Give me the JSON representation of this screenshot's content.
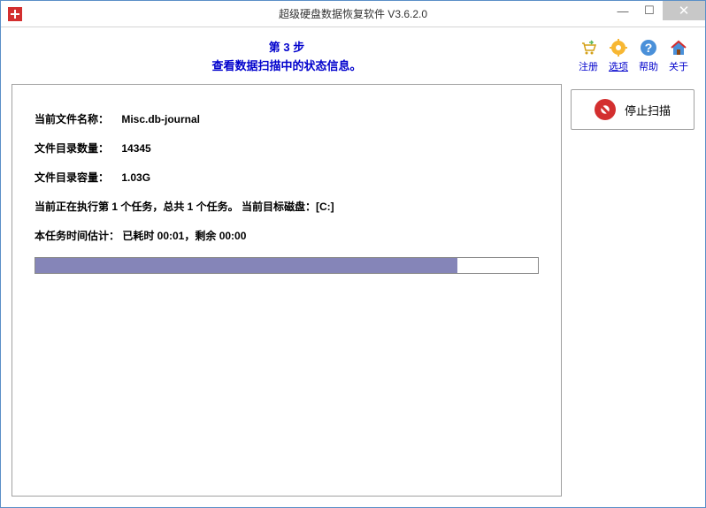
{
  "window": {
    "title": "超级硬盘数据恢复软件  V3.6.2.0"
  },
  "step": {
    "number": "第 3 步",
    "description": "查看数据扫描中的状态信息。"
  },
  "info": {
    "filename_label": "当前文件名称：",
    "filename_value": "Misc.db-journal",
    "count_label": "文件目录数量：",
    "count_value": "14345",
    "size_label": "文件目录容量：",
    "size_value": "1.03G",
    "task_text": "当前正在执行第 1 个任务，总共 1 个任务。 当前目标磁盘：[C:]",
    "time_text": "本任务时间估计：  已耗时 00:01，剩余 00:00"
  },
  "progress": {
    "percent": 84
  },
  "toolbar": {
    "register": "注册",
    "options": "选项",
    "help": "帮助",
    "about": "关于"
  },
  "button": {
    "stop": "停止扫描"
  },
  "colors": {
    "border": "#5a8fc7",
    "link": "#0000cc",
    "progress_fill": "#8585b8",
    "icon_red": "#d32f2f"
  }
}
